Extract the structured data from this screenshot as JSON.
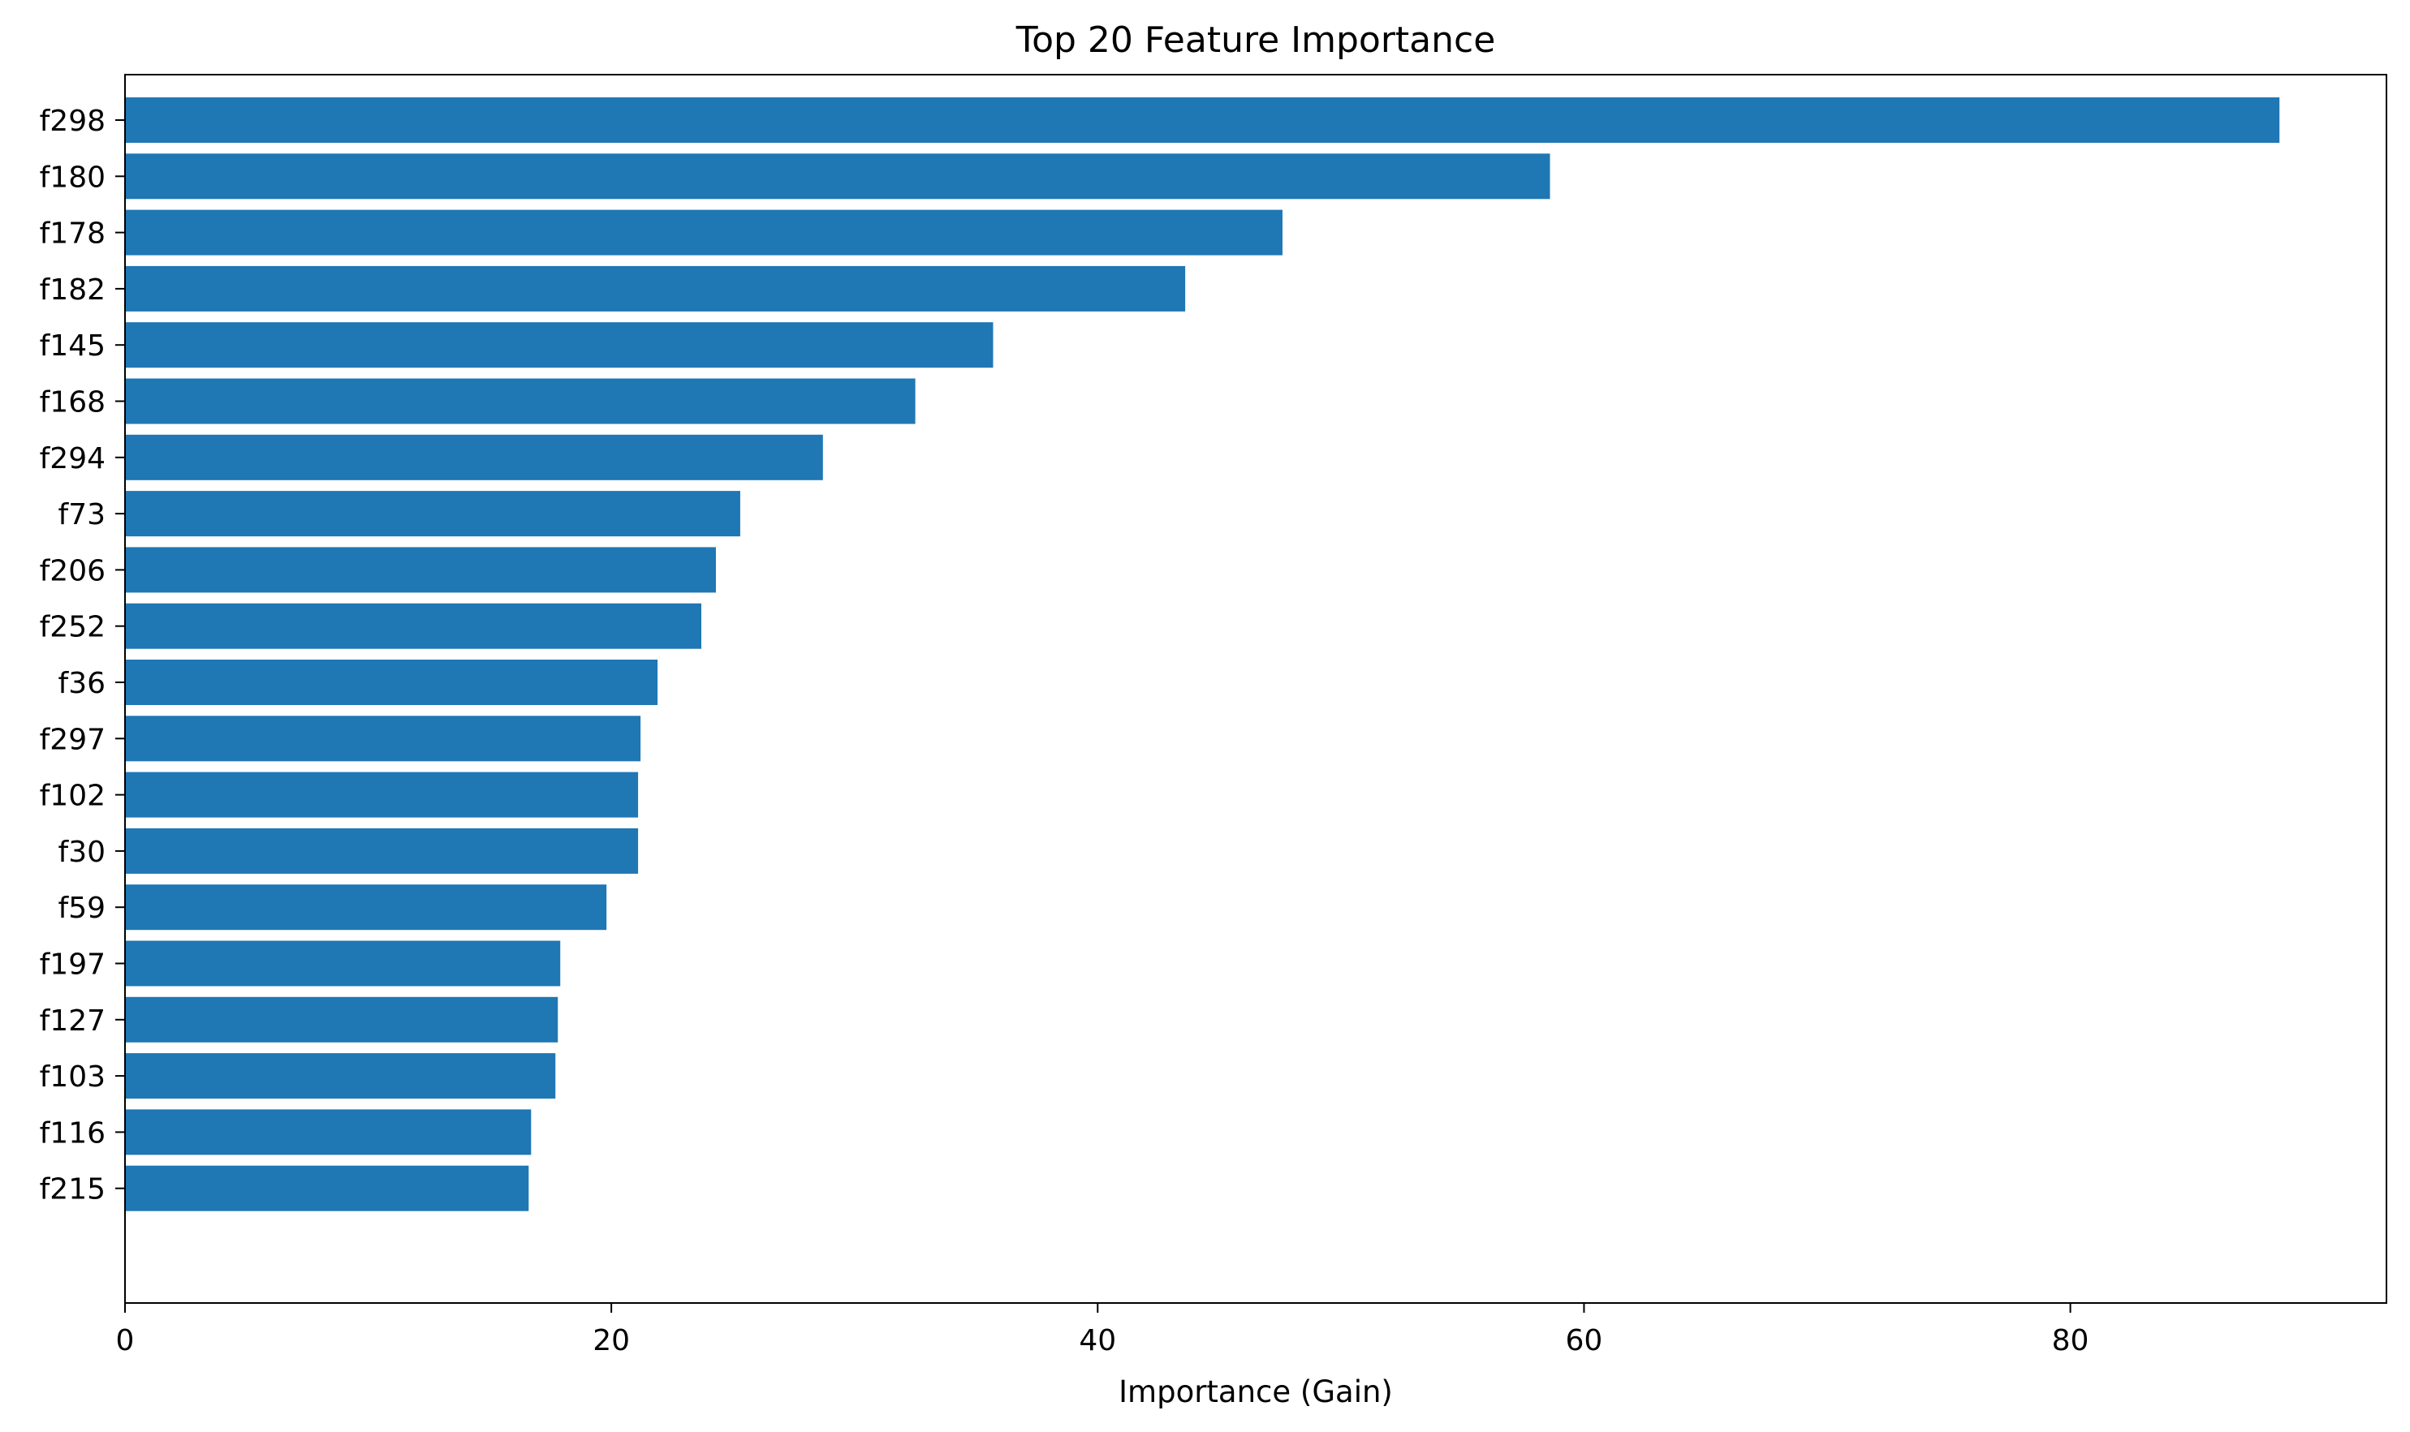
{
  "chart_data": {
    "type": "bar",
    "orientation": "horizontal",
    "title": "Top 20 Feature Importance",
    "xlabel": "Importance (Gain)",
    "ylabel": "",
    "xlim": [
      0,
      93
    ],
    "xticks": [
      0,
      20,
      40,
      60,
      80
    ],
    "grid": false,
    "legend": "none",
    "bar_color": "#1f77b4",
    "categories": [
      "f298",
      "f180",
      "f178",
      "f182",
      "f145",
      "f168",
      "f294",
      "f73",
      "f206",
      "f252",
      "f36",
      "f297",
      "f102",
      "f30",
      "f59",
      "f197",
      "f127",
      "f103",
      "f116",
      "f215"
    ],
    "values": [
      88.6,
      58.6,
      47.6,
      43.6,
      35.7,
      32.5,
      28.7,
      25.3,
      24.3,
      23.7,
      21.9,
      21.2,
      21.1,
      21.1,
      19.8,
      17.9,
      17.8,
      17.7,
      16.7,
      16.6
    ]
  }
}
